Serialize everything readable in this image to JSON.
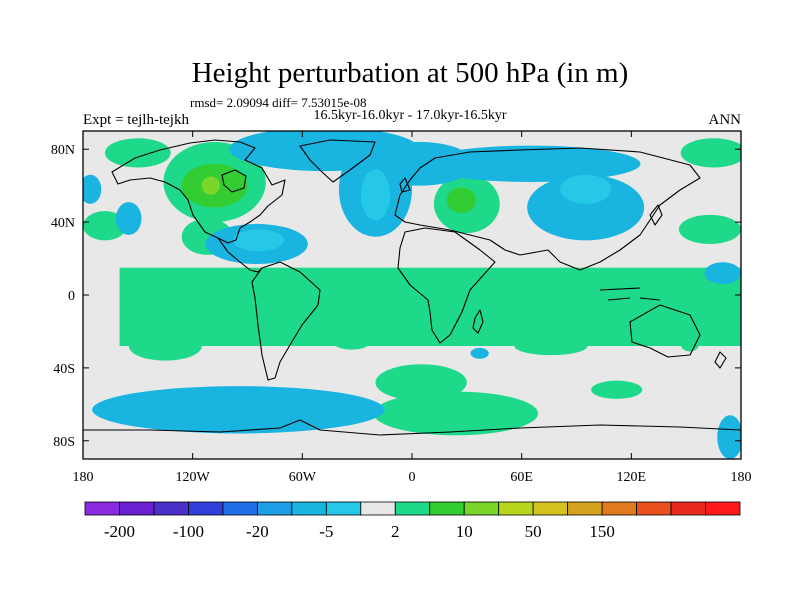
{
  "chart_data": {
    "type": "heatmap",
    "title": "Height perturbation at 500 hPa (in m)",
    "stats": "rmsd= 2.09094 diff= 7.53015e-08",
    "period": "16.5kyr-16.0kyr - 17.0kyr-16.5kyr",
    "experiment": "Expt = tejlh-tejkh",
    "season": "ANN",
    "x_range": [
      -180,
      180
    ],
    "y_range": [
      -90,
      90
    ],
    "x_ticks": [
      {
        "value": -180,
        "label": "180"
      },
      {
        "value": -120,
        "label": "120W"
      },
      {
        "value": -60,
        "label": "60W"
      },
      {
        "value": 0,
        "label": "0"
      },
      {
        "value": 60,
        "label": "60E"
      },
      {
        "value": 120,
        "label": "120E"
      },
      {
        "value": 180,
        "label": "180"
      }
    ],
    "y_ticks": [
      {
        "value": 80,
        "label": "80N"
      },
      {
        "value": 40,
        "label": "40N"
      },
      {
        "value": 0,
        "label": "0"
      },
      {
        "value": -40,
        "label": "40S"
      },
      {
        "value": -80,
        "label": "80S"
      }
    ],
    "colorbar": {
      "colors": [
        "#8a2be2",
        "#6a1fd1",
        "#4b2fc9",
        "#2f3fd8",
        "#1f6fe6",
        "#1f9ce6",
        "#19b4e0",
        "#26c8e8",
        "#e8e8e8",
        "#1ed98a",
        "#33cc33",
        "#7bd62a",
        "#b8d61e",
        "#d6c21e",
        "#d6a21e",
        "#e07a1e",
        "#e8501e",
        "#e82a1e",
        "#ff1a1a"
      ],
      "labels": [
        {
          "index": 1,
          "text": "-200"
        },
        {
          "index": 3,
          "text": "-100"
        },
        {
          "index": 5,
          "text": "-20"
        },
        {
          "index": 7,
          "text": "-5"
        },
        {
          "index": 9,
          "text": "2"
        },
        {
          "index": 11,
          "text": "10"
        },
        {
          "index": 13,
          "text": "50"
        },
        {
          "index": 15,
          "text": "150"
        }
      ]
    },
    "fields": [
      {
        "level": "2 to 5",
        "color": "#1ed98a",
        "lon": [
          -160,
          180
        ],
        "lat": [
          -28,
          15
        ],
        "comment": ""
      }
    ],
    "blobs": [
      {
        "level": "2 to 5",
        "color": "#1ed98a",
        "lon": -108,
        "lat": 62,
        "rx": 28,
        "ry": 22
      },
      {
        "level": "2 to 5",
        "color": "#1ed98a",
        "lon": -150,
        "lat": 78,
        "rx": 18,
        "ry": 8
      },
      {
        "level": "2 to 5",
        "color": "#1ed98a",
        "lon": -112,
        "lat": 32,
        "rx": 14,
        "ry": 10
      },
      {
        "level": "2 to 5",
        "color": "#1ed98a",
        "lon": 30,
        "lat": 50,
        "rx": 18,
        "ry": 16
      },
      {
        "level": "2 to 5",
        "color": "#1ed98a",
        "lon": 165,
        "lat": 78,
        "rx": 18,
        "ry": 8
      },
      {
        "level": "2 to 5",
        "color": "#1ed98a",
        "lon": 163,
        "lat": 36,
        "rx": 17,
        "ry": 8
      },
      {
        "level": "2 to 5",
        "color": "#1ed98a",
        "lon": -168,
        "lat": 38,
        "rx": 12,
        "ry": 8
      },
      {
        "level": "2 to 5",
        "color": "#1ed98a",
        "lon": -135,
        "lat": -28,
        "rx": 20,
        "ry": 8
      },
      {
        "level": "2 to 5",
        "color": "#1ed98a",
        "lon": -33,
        "lat": -26,
        "rx": 10,
        "ry": 4
      },
      {
        "level": "2 to 5",
        "color": "#1ed98a",
        "lon": 76,
        "lat": -28,
        "rx": 20,
        "ry": 5
      },
      {
        "level": "2 to 5",
        "color": "#1ed98a",
        "lon": 5,
        "lat": -48,
        "rx": 25,
        "ry": 10
      },
      {
        "level": "2 to 5",
        "color": "#1ed98a",
        "lon": 24,
        "lat": -65,
        "rx": 45,
        "ry": 12
      },
      {
        "level": "2 to 5",
        "color": "#1ed98a",
        "lon": 112,
        "lat": -52,
        "rx": 14,
        "ry": 5
      },
      {
        "level": "2 to 5",
        "color": "#1ed98a",
        "lon": 152,
        "lat": -27,
        "rx": 5,
        "ry": 4
      },
      {
        "level": "2 to 5",
        "color": "#1ed98a",
        "lon": 120,
        "lat": 4,
        "rx": 5,
        "ry": 3
      },
      {
        "level": "5 to 10",
        "color": "#33cc33",
        "lon": -108,
        "lat": 60,
        "rx": 18,
        "ry": 12
      },
      {
        "level": "5 to 10",
        "color": "#33cc33",
        "lon": 27,
        "lat": 52,
        "rx": 8,
        "ry": 7
      },
      {
        "level": "10 to 20",
        "color": "#7bd62a",
        "lon": -110,
        "lat": 60,
        "rx": 5,
        "ry": 5
      },
      {
        "level": "-5 to -2",
        "color": "#19b4e0",
        "lon": -48,
        "lat": 80,
        "rx": 52,
        "ry": 12
      },
      {
        "level": "-5 to -2",
        "color": "#19b4e0",
        "lon": -20,
        "lat": 58,
        "rx": 20,
        "ry": 26
      },
      {
        "level": "-5 to -2",
        "color": "#19b4e0",
        "lon": 4,
        "lat": 72,
        "rx": 30,
        "ry": 12
      },
      {
        "level": "-5 to -2",
        "color": "#19b4e0",
        "lon": 65,
        "lat": 72,
        "rx": 60,
        "ry": 10
      },
      {
        "level": "-5 to -2",
        "color": "#19b4e0",
        "lon": 95,
        "lat": 48,
        "rx": 32,
        "ry": 18
      },
      {
        "level": "-5 to -2",
        "color": "#19b4e0",
        "lon": -85,
        "lat": 28,
        "rx": 28,
        "ry": 11
      },
      {
        "level": "-5 to -2",
        "color": "#19b4e0",
        "lon": -155,
        "lat": 42,
        "rx": 7,
        "ry": 9
      },
      {
        "level": "-5 to -2",
        "color": "#19b4e0",
        "lon": -176,
        "lat": 58,
        "rx": 6,
        "ry": 8
      },
      {
        "level": "-5 to -2",
        "color": "#19b4e0",
        "lon": -95,
        "lat": -63,
        "rx": 80,
        "ry": 13
      },
      {
        "level": "-5 to -2",
        "color": "#19b4e0",
        "lon": 37,
        "lat": -32,
        "rx": 5,
        "ry": 3
      },
      {
        "level": "-5 to -2",
        "color": "#19b4e0",
        "lon": 170,
        "lat": 12,
        "rx": 10,
        "ry": 6
      },
      {
        "level": "-5 to -2",
        "color": "#19b4e0",
        "lon": 174,
        "lat": -78,
        "rx": 7,
        "ry": 12
      },
      {
        "level": "-20 to -5",
        "color": "#26c8e8",
        "lon": -84,
        "lat": 30,
        "rx": 14,
        "ry": 6
      },
      {
        "level": "-20 to -5",
        "color": "#26c8e8",
        "lon": -20,
        "lat": 55,
        "rx": 8,
        "ry": 14
      },
      {
        "level": "-20 to -5",
        "color": "#26c8e8",
        "lon": 95,
        "lat": 58,
        "rx": 14,
        "ry": 8
      }
    ]
  }
}
